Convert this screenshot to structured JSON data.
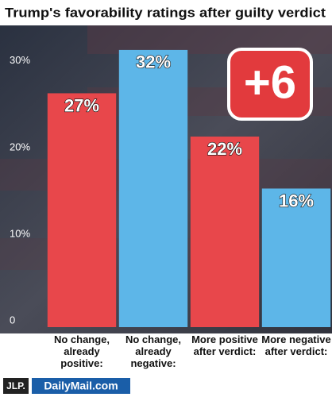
{
  "chart_data": {
    "type": "bar",
    "title": "Trump's favorability ratings after guilty verdict",
    "categories": [
      "No change, already positive:",
      "No change, already negative:",
      "More positive after verdict:",
      "More negative after verdict:"
    ],
    "values": [
      27,
      32,
      22,
      16
    ],
    "value_labels": [
      "27%",
      "32%",
      "22%",
      "16%"
    ],
    "colors": [
      "#e8474b",
      "#5db6e8",
      "#e8474b",
      "#5db6e8"
    ],
    "ylim": [
      0,
      33
    ],
    "yticks": [
      0,
      {
        "value": 10,
        "label": "10%"
      },
      {
        "value": 20,
        "label": "20%"
      },
      {
        "value": 30,
        "label": "30%"
      }
    ],
    "annotation": "+6",
    "logos": [
      "JLP.",
      "DailyMail.com"
    ]
  }
}
